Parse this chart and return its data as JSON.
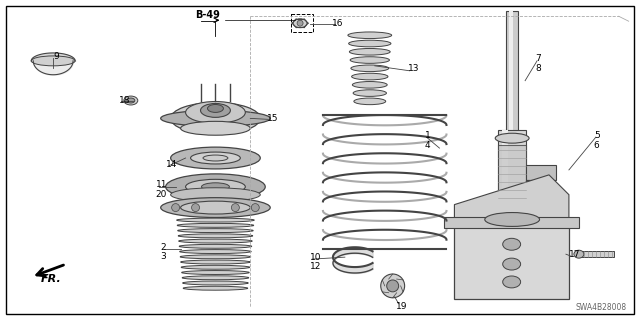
{
  "background_color": "#ffffff",
  "border_color": "#000000",
  "diagram_code": "SWA4B28008",
  "line_color": "#444444",
  "text_color": "#000000",
  "gray_fill": "#d0d0d0",
  "dark_fill": "#a0a0a0",
  "light_fill": "#e8e8e8",
  "figsize": [
    6.4,
    3.2
  ],
  "dpi": 100
}
